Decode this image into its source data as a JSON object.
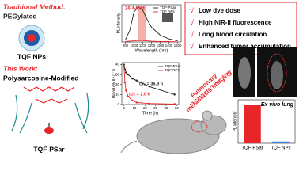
{
  "traditional": {
    "heading": "Traditional Method:",
    "method": "PEGylated",
    "label": "TQF NPs"
  },
  "this_work": {
    "heading": "This Work:",
    "method": "Polysarcosine-Modified",
    "label": "TQF-PSar"
  },
  "benefits": [
    "Low dye dose",
    "High NIR-II fluorescence",
    "Long blood circulation",
    "Enhanced tumor accumulation"
  ],
  "arrow_label": [
    "Pulmonary",
    "metastasis imaging"
  ],
  "chart_data": [
    {
      "type": "line",
      "annotation": "26.4-fold",
      "x_label": "Wavelength (nm)",
      "y_label": "PL intensity",
      "x": [
        900,
        950,
        1000,
        1050,
        1100,
        1150,
        1200,
        1300,
        1400,
        1500
      ],
      "series": [
        {
          "name": "TQF-PSar",
          "color": "#222222",
          "values": [
            5,
            30,
            80,
            95,
            85,
            60,
            40,
            18,
            8,
            3
          ]
        },
        {
          "name": "TQF NPs",
          "color": "#e8262a",
          "values": [
            1,
            2,
            3,
            4,
            4,
            3,
            2,
            1,
            1,
            0
          ]
        }
      ],
      "xlim": [
        860,
        1540
      ],
      "xticks": [
        900,
        1000,
        1100,
        1200,
        1300,
        1400,
        1500
      ],
      "ylim": [
        0,
        100
      ]
    },
    {
      "type": "line",
      "x_label": "Time (h)",
      "y_label": "Blood (% ID g⁻¹)",
      "annotations": [
        {
          "text": "t₁/₂ = 36.9 h",
          "color": "#222222"
        },
        {
          "text": "t₁/₂ = 2.0 h",
          "color": "#e8262a"
        }
      ],
      "x": [
        0,
        1,
        2,
        4,
        8,
        12,
        24,
        48
      ],
      "series": [
        {
          "name": "TQF-PSar",
          "color": "#222222",
          "values": [
            40,
            35,
            32,
            30,
            26,
            24,
            18,
            10
          ]
        },
        {
          "name": "TQF NPs",
          "color": "#e8262a",
          "values": [
            38,
            22,
            14,
            8,
            4,
            2,
            1,
            0.5
          ]
        }
      ],
      "xlim": [
        -2,
        52
      ],
      "xticks": [
        0,
        10,
        20,
        30,
        40,
        50
      ],
      "ylim": [
        0,
        42
      ],
      "yticks": [
        0,
        10,
        20,
        30,
        40
      ]
    },
    {
      "type": "bar",
      "title": "Ex vivo lung",
      "y_label": "PL intensity",
      "categories": [
        "TQF-PSar",
        "TQF NPs"
      ],
      "values": [
        88,
        4
      ],
      "colors": [
        "#e8262a",
        "#3a7bd5"
      ],
      "ylim": [
        0,
        100
      ]
    }
  ]
}
